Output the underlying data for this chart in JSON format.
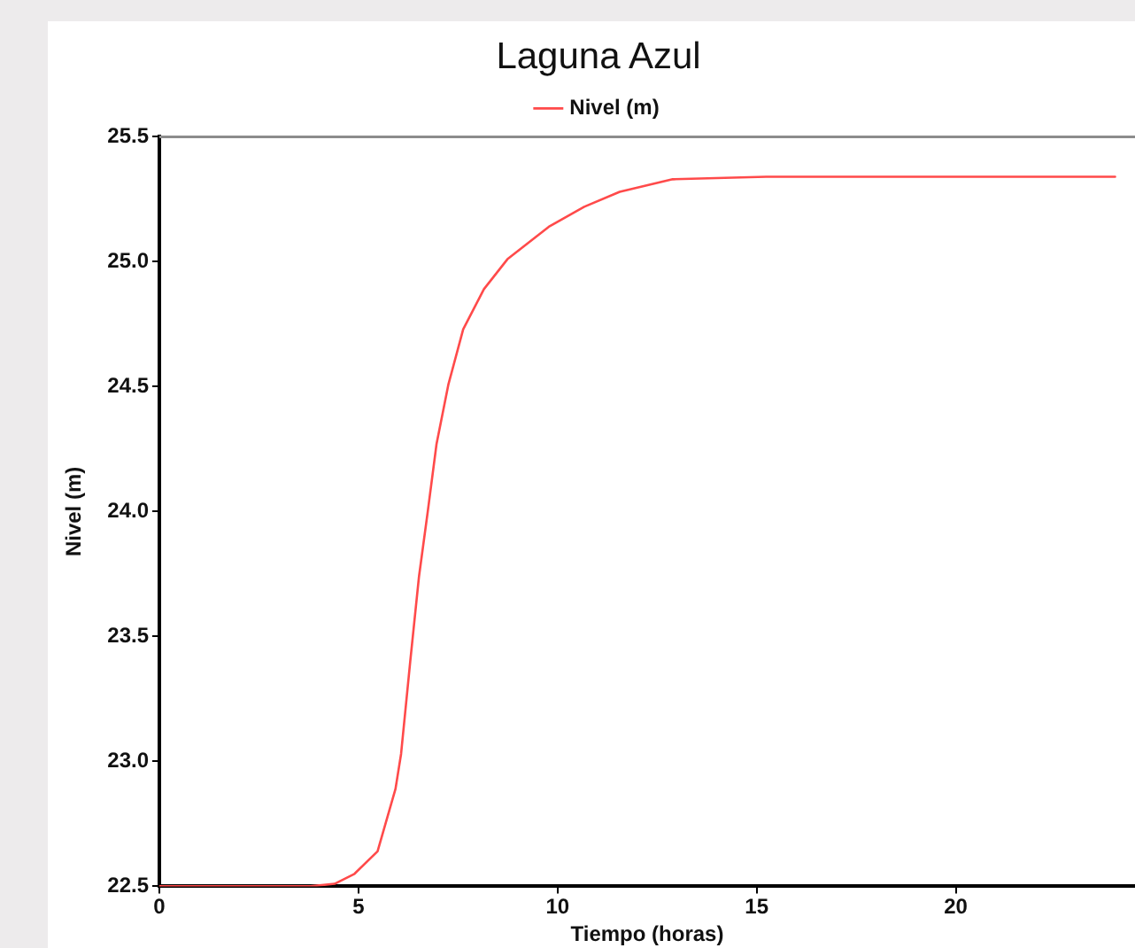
{
  "chart_data": {
    "type": "line",
    "title": "Laguna Azul",
    "xlabel": "Tiempo (horas)",
    "ylabel": "Nivel (m)",
    "x": [
      0,
      3.8,
      4.4,
      4.9,
      5.48,
      5.93,
      6.07,
      6.3,
      6.52,
      6.74,
      6.96,
      7.26,
      7.63,
      8.15,
      8.74,
      9.78,
      10.67,
      11.56,
      12.89,
      15.24,
      24
    ],
    "series": [
      {
        "name": "Nivel (m)",
        "color": "#ff4a4a",
        "values": [
          22.5,
          22.5,
          22.51,
          22.55,
          22.64,
          22.89,
          23.03,
          23.4,
          23.74,
          24.0,
          24.27,
          24.51,
          24.73,
          24.89,
          25.01,
          25.14,
          25.22,
          25.28,
          25.33,
          25.34,
          25.34
        ]
      }
    ],
    "xlim": [
      0,
      24.5
    ],
    "xticks": [
      0,
      5,
      10,
      15,
      20
    ],
    "ylim": [
      22.5,
      25.5
    ],
    "yticks": [
      {
        "value": 22.5,
        "label": "22.5"
      },
      {
        "value": 23,
        "label": "23.0"
      },
      {
        "value": 23.5,
        "label": "23.5"
      },
      {
        "value": 24,
        "label": "24.0"
      },
      {
        "value": 24.5,
        "label": "24.5"
      },
      {
        "value": 25,
        "label": "25.0"
      },
      {
        "value": 25.5,
        "label": "25.5"
      }
    ],
    "grid": false,
    "legend": "top",
    "marker": "none",
    "line_style": "solid"
  }
}
